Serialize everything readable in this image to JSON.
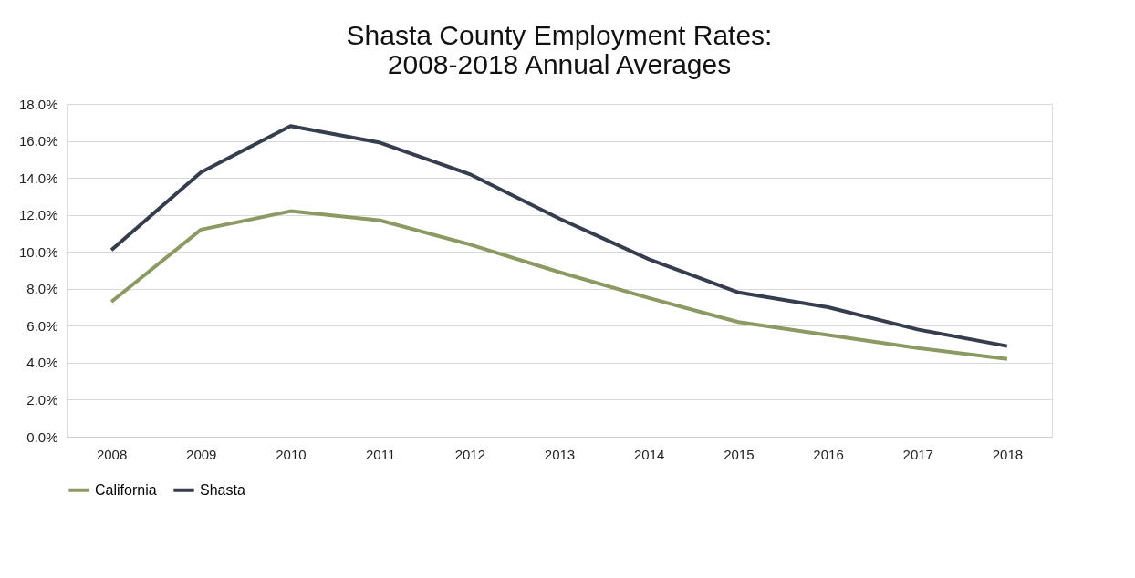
{
  "chart_data": {
    "type": "line",
    "title": [
      "Shasta County Employment Rates:",
      "2008-2018 Annual Averages"
    ],
    "categories": [
      "2008",
      "2009",
      "2010",
      "2011",
      "2012",
      "2013",
      "2014",
      "2015",
      "2016",
      "2017",
      "2018"
    ],
    "series": [
      {
        "name": "California",
        "color": "#8b9a62",
        "values": [
          7.3,
          11.2,
          12.2,
          11.7,
          10.4,
          8.9,
          7.5,
          6.2,
          5.5,
          4.8,
          4.2
        ]
      },
      {
        "name": "Shasta",
        "color": "#363d4f",
        "values": [
          10.1,
          14.3,
          16.8,
          15.9,
          14.2,
          11.8,
          9.6,
          7.8,
          7.0,
          5.8,
          4.9
        ]
      }
    ],
    "ylim": [
      0,
      18
    ],
    "yticks": [
      {
        "value": 0,
        "label": "0.0%"
      },
      {
        "value": 2,
        "label": "2.0%"
      },
      {
        "value": 4,
        "label": "4.0%"
      },
      {
        "value": 6,
        "label": "6.0%"
      },
      {
        "value": 8,
        "label": "8.0%"
      },
      {
        "value": 10,
        "label": "10.0%"
      },
      {
        "value": 12,
        "label": "12.0%"
      },
      {
        "value": 14,
        "label": "14.0%"
      },
      {
        "value": 16,
        "label": "16.0%"
      },
      {
        "value": 18,
        "label": "18.0%"
      }
    ],
    "grid": "y",
    "legend": "bottom",
    "marker": "none",
    "line_style": "solid"
  }
}
